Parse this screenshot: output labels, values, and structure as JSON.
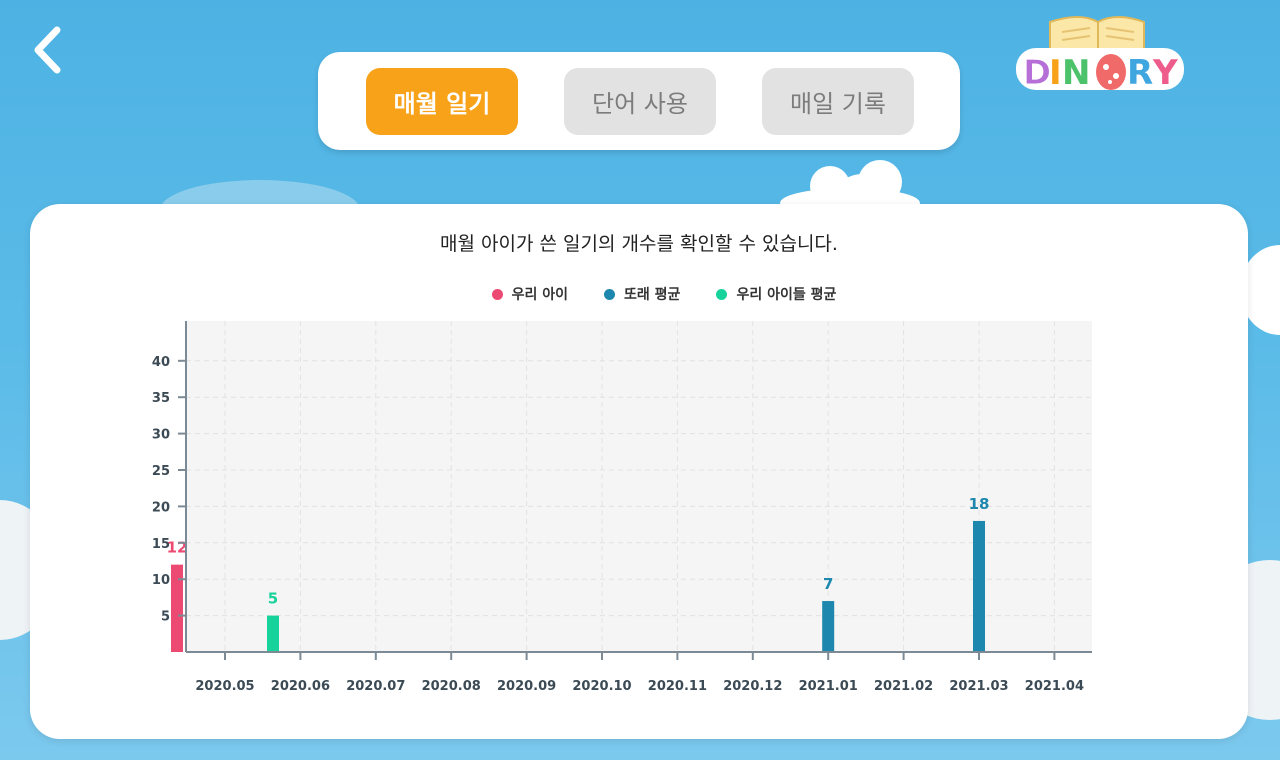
{
  "nav": {
    "back_icon": "chevron-left-icon"
  },
  "tabs": [
    {
      "label": "매월 일기",
      "active": true
    },
    {
      "label": "단어 사용",
      "active": false
    },
    {
      "label": "매일 기록",
      "active": false
    }
  ],
  "logo": {
    "text": "DINORY",
    "icon": "open-book-dino-egg-logo"
  },
  "panel": {
    "title": "매월 아이가 쓴 일기의 개수를 확인할 수 있습니다."
  },
  "colors": {
    "our_child": "#ec4a73",
    "peer_average": "#1d87ad",
    "all_children_average": "#18d29b",
    "active_tab": "#f7a219"
  },
  "chart_data": {
    "type": "bar",
    "categories": [
      "2020.05",
      "2020.06",
      "2020.07",
      "2020.08",
      "2020.09",
      "2020.10",
      "2020.11",
      "2020.12",
      "2021.01",
      "2021.02",
      "2021.03",
      "2021.04"
    ],
    "series": [
      {
        "name": "우리 아이",
        "color": "#ec4a73",
        "values": [
          12,
          0,
          0,
          0,
          0,
          0,
          0,
          0,
          0,
          0,
          0,
          0
        ]
      },
      {
        "name": "또래 평균",
        "color": "#1d87ad",
        "values": [
          0,
          0,
          0,
          0,
          0,
          0,
          0,
          0,
          7,
          0,
          18,
          0
        ]
      },
      {
        "name": "우리 아이들 평균",
        "color": "#18d29b",
        "values": [
          5,
          0,
          0,
          0,
          0,
          0,
          0,
          0,
          0,
          0,
          0,
          0
        ]
      }
    ],
    "yticks": [
      "5",
      "10",
      "15",
      "20",
      "25",
      "30",
      "35",
      "40"
    ],
    "ylim": [
      0,
      40
    ],
    "grid": true,
    "legend": "top-center"
  }
}
